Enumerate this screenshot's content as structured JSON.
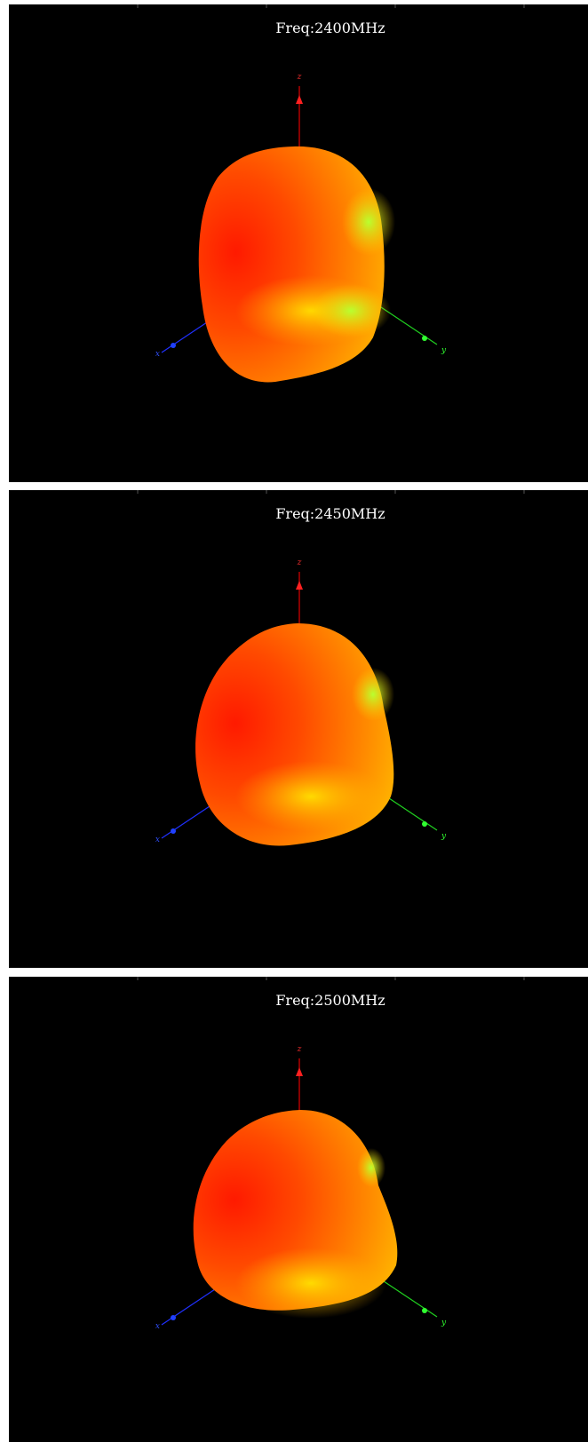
{
  "panels": [
    {
      "title": "Freq:2400MHz",
      "axes": {
        "z": "z",
        "x": "x",
        "y": "y"
      }
    },
    {
      "title": "Freq:2450MHz",
      "axes": {
        "z": "z",
        "x": "x",
        "y": "y"
      }
    },
    {
      "title": "Freq:2500MHz",
      "axes": {
        "z": "z",
        "x": "x",
        "y": "y"
      }
    }
  ]
}
